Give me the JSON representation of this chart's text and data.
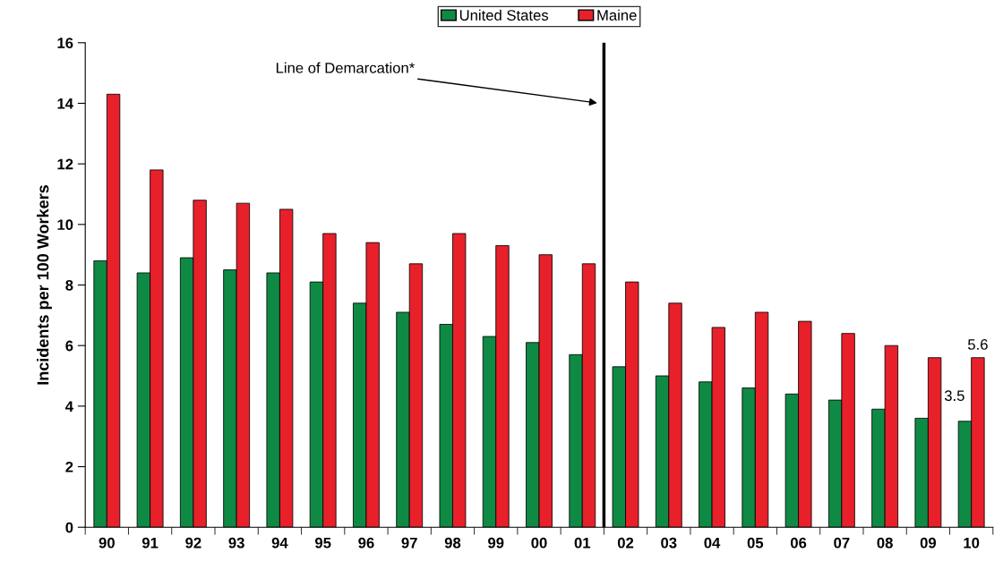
{
  "chart_data": {
    "type": "bar",
    "ylabel": "Incidents per 100 Workers",
    "categories": [
      "90",
      "91",
      "92",
      "93",
      "94",
      "95",
      "96",
      "97",
      "98",
      "99",
      "00",
      "01",
      "02",
      "03",
      "04",
      "05",
      "06",
      "07",
      "08",
      "09",
      "10"
    ],
    "series": [
      {
        "name": "United States",
        "color": "#0f8a45",
        "values": [
          8.8,
          8.4,
          8.9,
          8.5,
          8.4,
          8.1,
          7.4,
          7.1,
          6.7,
          6.3,
          6.1,
          5.7,
          5.3,
          5.0,
          4.8,
          4.6,
          4.4,
          4.2,
          3.9,
          3.6,
          3.5
        ],
        "value_labels": [
          null,
          null,
          null,
          null,
          null,
          null,
          null,
          null,
          null,
          null,
          null,
          null,
          null,
          null,
          null,
          null,
          null,
          null,
          null,
          null,
          "3.5"
        ]
      },
      {
        "name": "Maine",
        "color": "#e8202a",
        "values": [
          14.3,
          11.8,
          10.8,
          10.7,
          10.5,
          9.7,
          9.4,
          8.7,
          9.7,
          9.3,
          9.0,
          8.7,
          8.1,
          7.4,
          6.6,
          7.1,
          6.8,
          6.4,
          6.0,
          5.6,
          5.6
        ],
        "value_labels": [
          null,
          null,
          null,
          null,
          null,
          null,
          null,
          null,
          null,
          null,
          null,
          null,
          null,
          null,
          null,
          null,
          null,
          null,
          null,
          null,
          "5.6"
        ]
      }
    ],
    "ylim": [
      0,
      16
    ],
    "yticks": [
      0,
      2,
      4,
      6,
      8,
      10,
      12,
      14,
      16
    ],
    "annotations": [
      "Line of Demarcation*"
    ],
    "grid": false,
    "legend": "top"
  }
}
